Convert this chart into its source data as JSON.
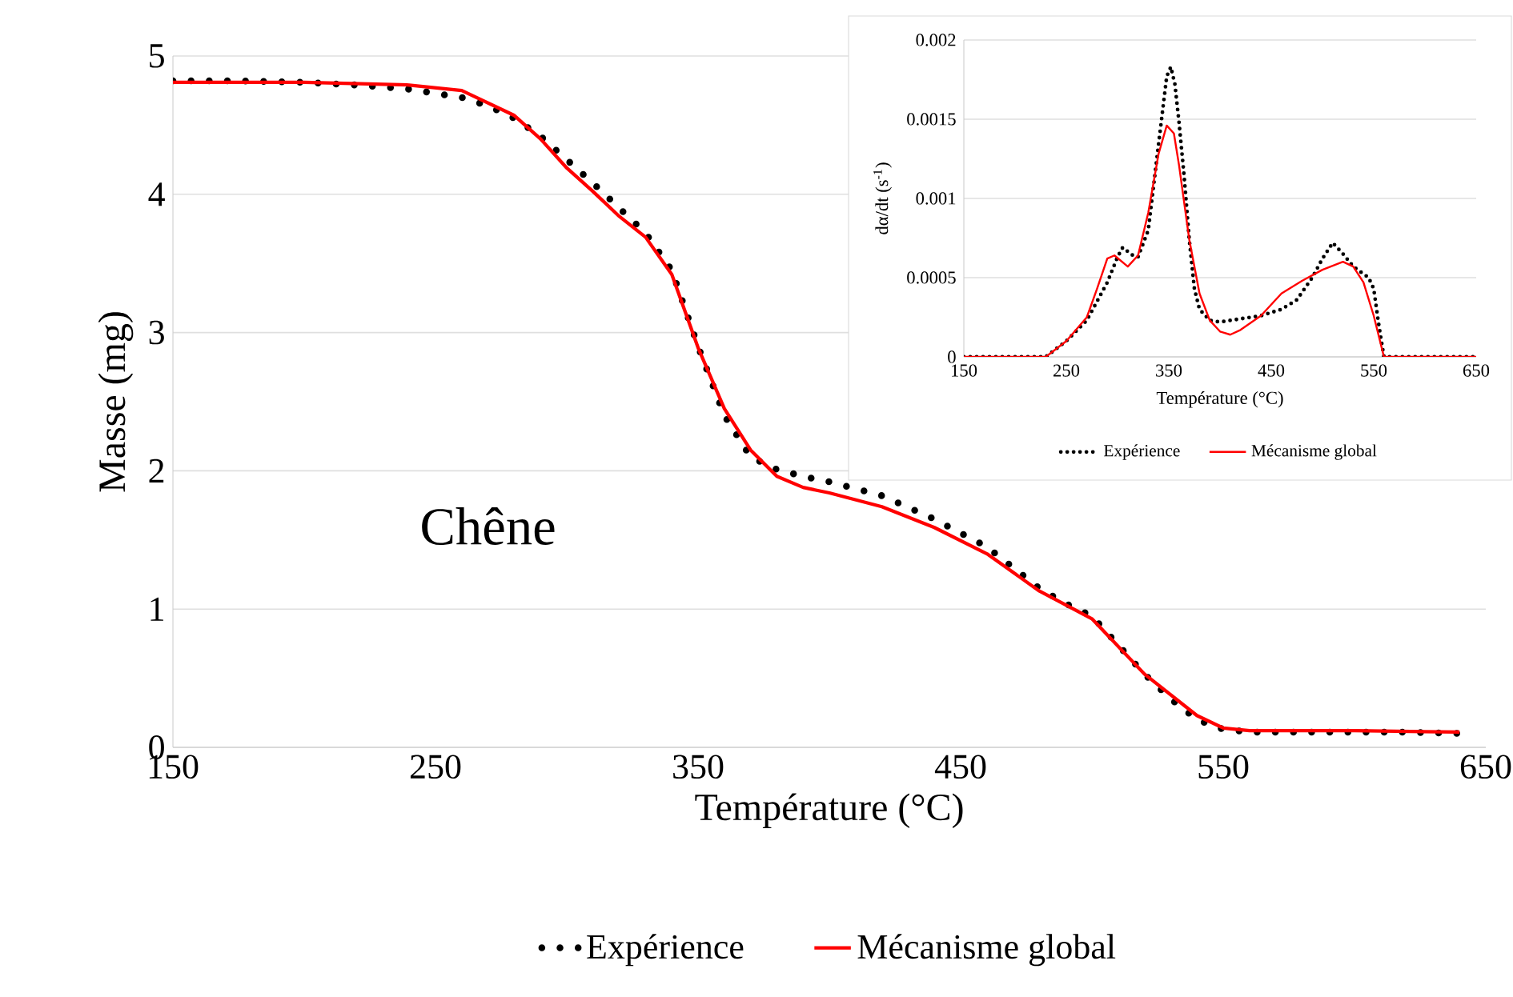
{
  "chart_data": [
    {
      "type": "line",
      "xlabel": "Température (°C)",
      "ylabel": "Masse (mg)",
      "xlim": [
        150,
        650
      ],
      "ylim": [
        0,
        5
      ],
      "xticks": [
        150,
        250,
        350,
        450,
        550,
        650
      ],
      "yticks": [
        0,
        1,
        2,
        3,
        4,
        5
      ],
      "grid": "y",
      "legend": "bottom",
      "annotations": [
        "Chêne"
      ],
      "series": [
        {
          "name": "Expérience",
          "color": "#000000",
          "line_style": "dotted",
          "x": [
            150,
            175,
            200,
            220,
            240,
            250,
            260,
            270,
            280,
            290,
            300,
            310,
            320,
            330,
            340,
            350,
            360,
            370,
            380,
            390,
            400,
            420,
            440,
            460,
            480,
            490,
            500,
            510,
            520,
            530,
            540,
            550,
            560,
            580,
            600,
            620,
            640
          ],
          "values": [
            4.82,
            4.82,
            4.81,
            4.79,
            4.76,
            4.73,
            4.7,
            4.64,
            4.55,
            4.42,
            4.25,
            4.08,
            3.9,
            3.72,
            3.45,
            2.9,
            2.4,
            2.1,
            2.01,
            1.96,
            1.92,
            1.82,
            1.65,
            1.45,
            1.15,
            1.04,
            0.95,
            0.74,
            0.53,
            0.35,
            0.2,
            0.13,
            0.11,
            0.11,
            0.11,
            0.11,
            0.1
          ]
        },
        {
          "name": "Mécanisme global",
          "color": "#ff0000",
          "line_style": "solid",
          "x": [
            150,
            200,
            240,
            260,
            280,
            290,
            300,
            310,
            320,
            330,
            340,
            350,
            360,
            370,
            380,
            390,
            400,
            420,
            440,
            460,
            480,
            500,
            520,
            540,
            550,
            560,
            600,
            640
          ],
          "values": [
            4.81,
            4.81,
            4.79,
            4.75,
            4.57,
            4.4,
            4.19,
            4.02,
            3.84,
            3.69,
            3.42,
            2.89,
            2.45,
            2.15,
            1.96,
            1.88,
            1.84,
            1.74,
            1.59,
            1.4,
            1.13,
            0.93,
            0.53,
            0.23,
            0.14,
            0.12,
            0.12,
            0.11
          ]
        }
      ]
    },
    {
      "type": "line",
      "xlabel": "Température (°C)",
      "ylabel": "dα/dt (s$^{-1}$)",
      "xlim": [
        150,
        650
      ],
      "ylim": [
        0,
        0.002
      ],
      "xticks": [
        150,
        250,
        350,
        450,
        550,
        650
      ],
      "yticks": [
        0,
        0.0005,
        0.001,
        0.0015,
        0.002
      ],
      "grid": "y",
      "legend": "bottom",
      "series": [
        {
          "name": "Expérience",
          "color": "#000000",
          "line_style": "dotted",
          "x": [
            150,
            200,
            230,
            250,
            270,
            290,
            300,
            305,
            315,
            320,
            330,
            340,
            348,
            352,
            356,
            360,
            365,
            370,
            375,
            380,
            390,
            400,
            420,
            440,
            460,
            475,
            490,
            500,
            510,
            520,
            530,
            545,
            550,
            555,
            560,
            570,
            600,
            610,
            630,
            650
          ],
          "values": [
            0,
            0,
            0,
            0.0001,
            0.00023,
            0.00047,
            0.00063,
            0.00069,
            0.00064,
            0.00063,
            0.0008,
            0.00134,
            0.00177,
            0.00183,
            0.00172,
            0.00148,
            0.00114,
            0.00074,
            0.00043,
            0.0003,
            0.00023,
            0.00022,
            0.00024,
            0.00026,
            0.0003,
            0.00036,
            0.0005,
            0.00062,
            0.00072,
            0.00065,
            0.00057,
            0.0005,
            0.00043,
            0.0002,
            0,
            0,
            0,
            0,
            0,
            0
          ]
        },
        {
          "name": "Mécanisme global",
          "color": "#ff0000",
          "line_style": "solid",
          "x": [
            150,
            200,
            230,
            250,
            270,
            280,
            290,
            297,
            310,
            320,
            330,
            340,
            348,
            355,
            360,
            370,
            380,
            390,
            400,
            410,
            420,
            440,
            460,
            480,
            500,
            520,
            530,
            540,
            550,
            560,
            570,
            650
          ],
          "values": [
            0,
            0,
            0,
            0.0001,
            0.00025,
            0.00043,
            0.00062,
            0.00064,
            0.00057,
            0.00064,
            0.00091,
            0.00128,
            0.00146,
            0.00141,
            0.00121,
            0.00074,
            0.0004,
            0.00023,
            0.00016,
            0.00014,
            0.00017,
            0.00026,
            0.0004,
            0.00048,
            0.00055,
            0.0006,
            0.00057,
            0.00047,
            0.00026,
            0,
            0,
            0
          ]
        }
      ]
    }
  ]
}
